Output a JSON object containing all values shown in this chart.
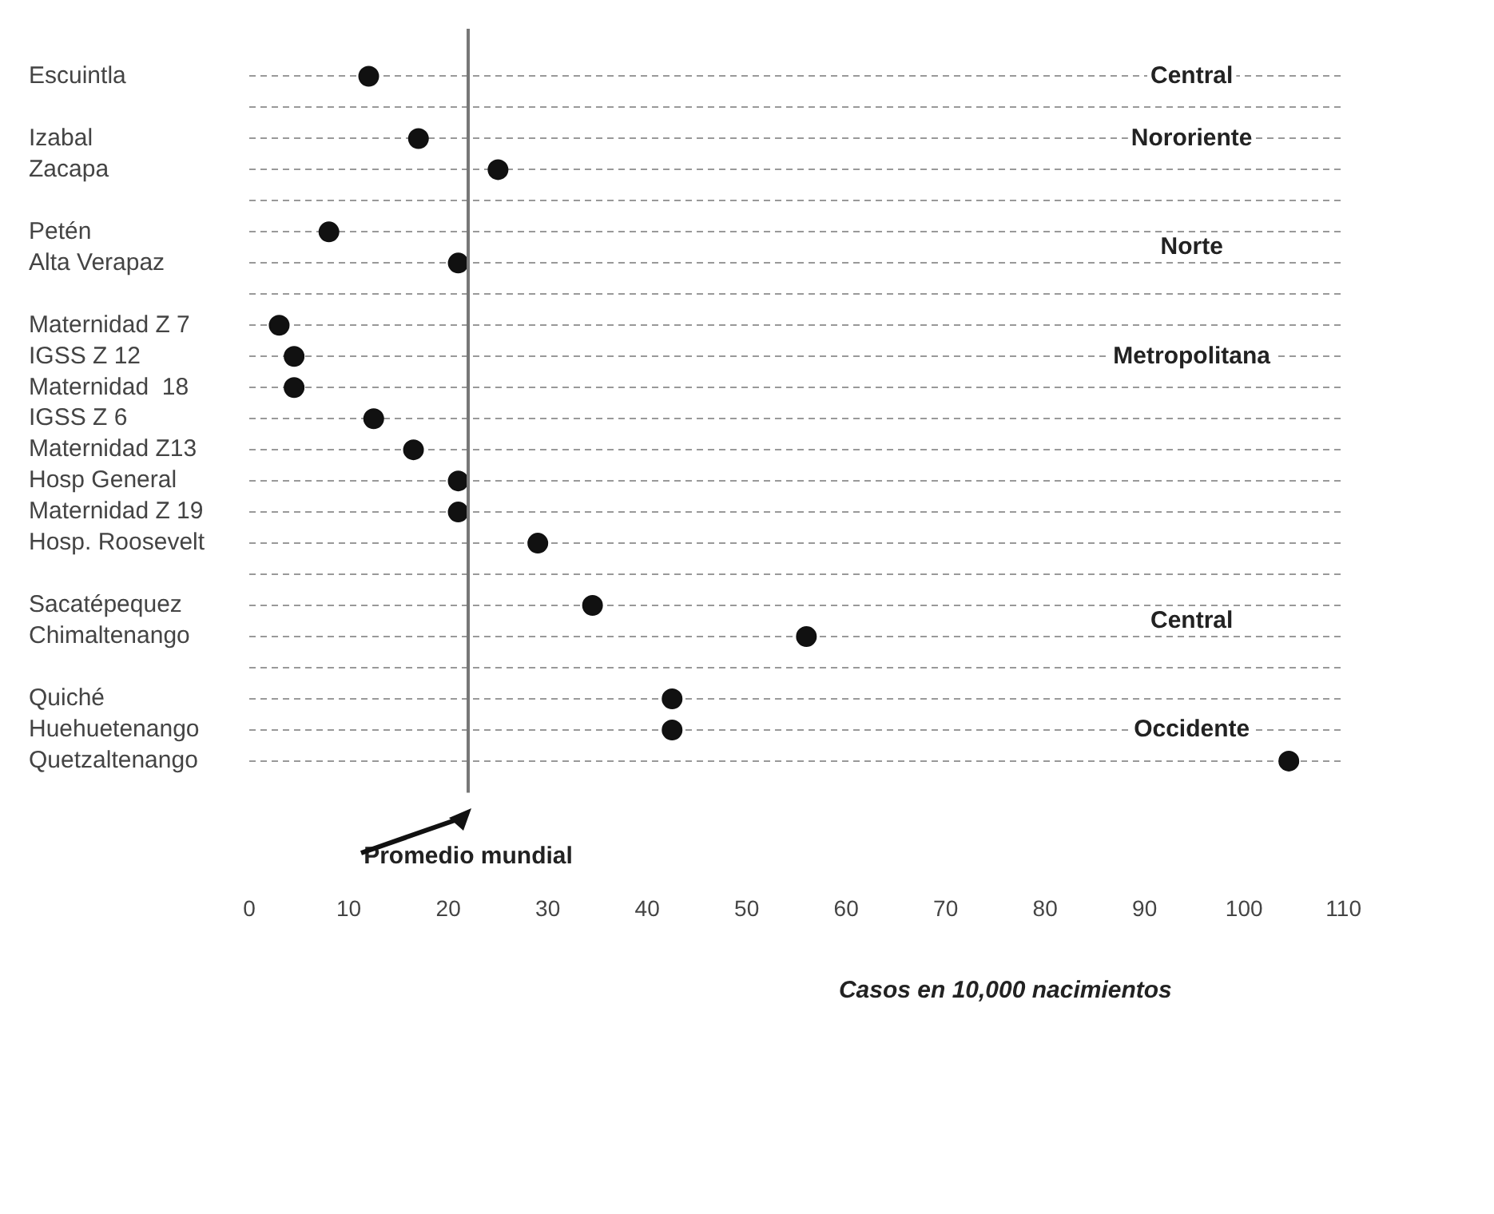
{
  "chart_data": {
    "type": "scatter",
    "orientation": "horizontal",
    "xlabel": "Casos en 10,000 nacimientos",
    "categories": [
      "Escuintla",
      null,
      "Izabal",
      "Zacapa",
      null,
      "Petén",
      "Alta Verapaz",
      null,
      "Maternidad Z 7",
      "IGSS Z 12",
      "Maternidad  18",
      "IGSS Z 6",
      "Maternidad Z13",
      "Hosp General",
      "Maternidad Z 19",
      "Hosp. Roosevelt",
      null,
      "Sacatépequez",
      "Chimaltenango",
      null,
      "Quiché",
      "Huehuetenango",
      "Quetzaltenango"
    ],
    "series": [
      {
        "color": "#111111",
        "values": [
          12,
          null,
          17,
          25,
          null,
          8,
          21,
          null,
          3,
          4.5,
          4.5,
          12.5,
          16.5,
          21,
          21,
          29,
          null,
          34.5,
          56,
          null,
          42.5,
          42.5,
          104.5
        ]
      }
    ],
    "xlim": [
      0,
      110
    ],
    "xticks": [
      0,
      10,
      20,
      30,
      40,
      50,
      60,
      70,
      80,
      90,
      100,
      110
    ],
    "grid": "y",
    "marker": "circle",
    "legend": false,
    "ref_lines": [
      {
        "axis": "x",
        "value": 22,
        "label": "Promedio mundial",
        "color": "#777777"
      }
    ],
    "annotations": [
      "Central",
      "Nororiente",
      "Norte",
      "Metropolitana",
      "Central",
      "Occidente"
    ]
  }
}
